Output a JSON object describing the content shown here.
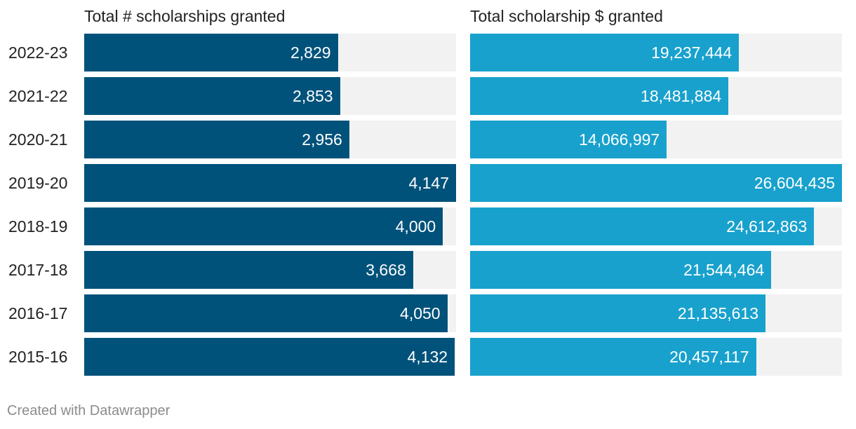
{
  "chart_data": [
    {
      "type": "bar",
      "orientation": "horizontal",
      "title": "Total # scholarships granted",
      "categories": [
        "2022-23",
        "2021-22",
        "2020-21",
        "2019-20",
        "2018-19",
        "2017-18",
        "2016-17",
        "2015-16"
      ],
      "values": [
        2829,
        2853,
        2956,
        4147,
        4000,
        3668,
        4050,
        4132
      ],
      "value_labels": [
        "2,829",
        "2,853",
        "2,956",
        "4,147",
        "4,000",
        "3,668",
        "4,050",
        "4,132"
      ],
      "xlim": [
        0,
        4147
      ],
      "color": "#00527a"
    },
    {
      "type": "bar",
      "orientation": "horizontal",
      "title": "Total scholarship $ granted",
      "categories": [
        "2022-23",
        "2021-22",
        "2020-21",
        "2019-20",
        "2018-19",
        "2017-18",
        "2016-17",
        "2015-16"
      ],
      "values": [
        19237444,
        18481884,
        14066997,
        26604435,
        24612863,
        21544464,
        21135613,
        20457117
      ],
      "value_labels": [
        "19,237,444",
        "18,481,884",
        "14,066,997",
        "26,604,435",
        "24,612,863",
        "21,544,464",
        "21,135,613",
        "20,457,117"
      ],
      "xlim": [
        0,
        26604435
      ],
      "color": "#18a1cd"
    }
  ],
  "track_color": "#f2f2f2",
  "footer": "Created with Datawrapper"
}
